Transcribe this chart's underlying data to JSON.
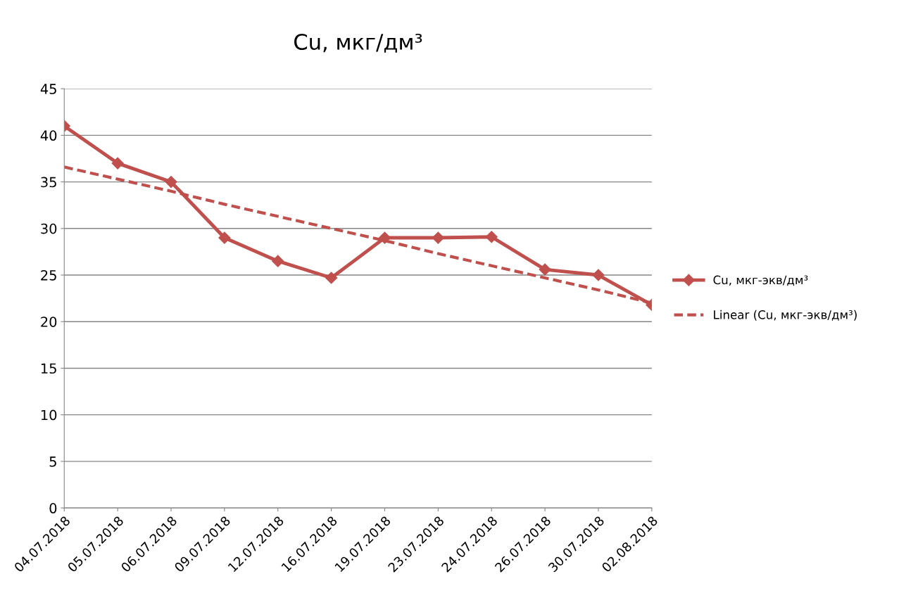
{
  "chart_data": {
    "type": "line",
    "title": "Cu, мкг/дм³",
    "categories": [
      "04.07.2018",
      "05.07.2018",
      "06.07.2018",
      "09.07.2018",
      "12.07.2018",
      "16.07.2018",
      "19.07.2018",
      "23.07.2018",
      "24.07.2018",
      "26.07.2018",
      "30.07.2018",
      "02.08.2018"
    ],
    "series": [
      {
        "name": "Cu, мкг-экв/дм³",
        "color": "#c0504d",
        "marker": "diamond",
        "line_style": "solid",
        "values": [
          41,
          37,
          35,
          29,
          26.5,
          24.7,
          29,
          29,
          29.1,
          25.6,
          25,
          21.8
        ]
      },
      {
        "name": "Linear (Cu, мкг-экв/дм³)",
        "color": "#c0504d",
        "marker": "none",
        "line_style": "dashed",
        "values": [
          36.6,
          35.3,
          34.0,
          32.6,
          31.3,
          30.0,
          28.7,
          27.3,
          26.0,
          24.7,
          23.4,
          22.0
        ]
      }
    ],
    "ylim": [
      0,
      45
    ],
    "yticks": [
      0,
      5,
      10,
      15,
      20,
      25,
      30,
      35,
      40,
      45
    ],
    "grid": "y",
    "legend": "right"
  }
}
